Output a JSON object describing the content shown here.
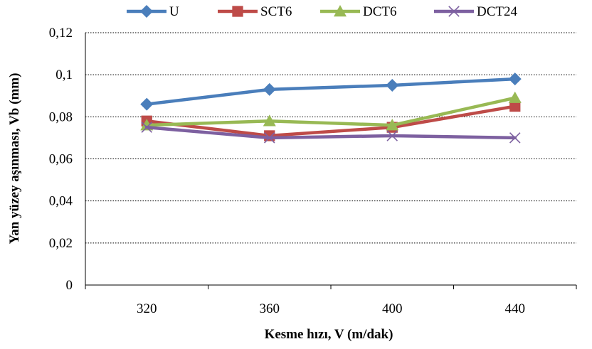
{
  "chart_data": {
    "type": "line",
    "title": "",
    "xlabel": "Kesme hızı, V (m/dak)",
    "ylabel": "Yan yüzey aşınması, Vb (mm)",
    "categories": [
      "320",
      "360",
      "400",
      "440"
    ],
    "ylim": [
      0,
      0.12
    ],
    "yticks": [
      "0",
      "0,02",
      "0,04",
      "0,06",
      "0,08",
      "0,1",
      "0,12"
    ],
    "grid": "horizontal dotted",
    "legend_position": "top",
    "series": [
      {
        "name": "U",
        "values": [
          0.086,
          0.093,
          0.095,
          0.098
        ],
        "color": "#4A7EBB",
        "marker": "diamond"
      },
      {
        "name": "SCT6",
        "values": [
          0.078,
          0.071,
          0.075,
          0.085
        ],
        "color": "#BE4B48",
        "marker": "square"
      },
      {
        "name": "DCT6",
        "values": [
          0.076,
          0.078,
          0.076,
          0.089
        ],
        "color": "#98B954",
        "marker": "triangle"
      },
      {
        "name": "DCT24",
        "values": [
          0.075,
          0.07,
          0.071,
          0.07
        ],
        "color": "#7D60A0",
        "marker": "x"
      }
    ]
  }
}
